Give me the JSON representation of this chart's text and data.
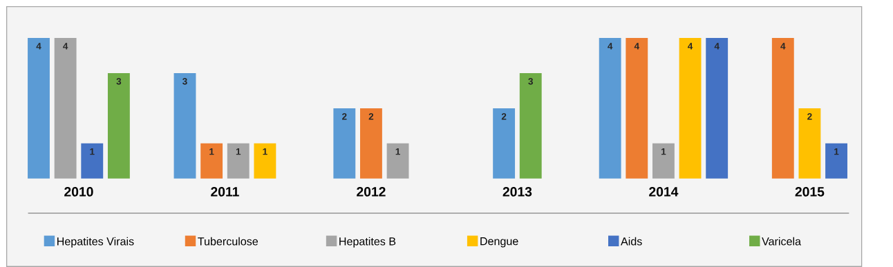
{
  "chart_data": {
    "type": "bar",
    "categories": [
      "2010",
      "2011",
      "2012",
      "2013",
      "2014",
      "2015"
    ],
    "series": [
      {
        "name": "Hepatites Virais",
        "color": "#5b9bd5",
        "values": [
          4,
          3,
          2,
          2,
          4,
          null
        ]
      },
      {
        "name": "Tuberculose",
        "color": "#ed7d31",
        "values": [
          null,
          1,
          2,
          null,
          4,
          4
        ]
      },
      {
        "name": "Hepatites B",
        "color": "#a5a5a5",
        "values": [
          4,
          1,
          1,
          null,
          1,
          null
        ]
      },
      {
        "name": "Dengue",
        "color": "#ffc000",
        "values": [
          null,
          1,
          null,
          null,
          4,
          2
        ]
      },
      {
        "name": "Aids",
        "color": "#4472c4",
        "values": [
          1,
          null,
          null,
          null,
          4,
          1
        ]
      },
      {
        "name": "Varicela",
        "color": "#70ad47",
        "values": [
          3,
          null,
          null,
          3,
          null,
          null
        ]
      }
    ],
    "data_labels": true,
    "legend": "bottom"
  }
}
